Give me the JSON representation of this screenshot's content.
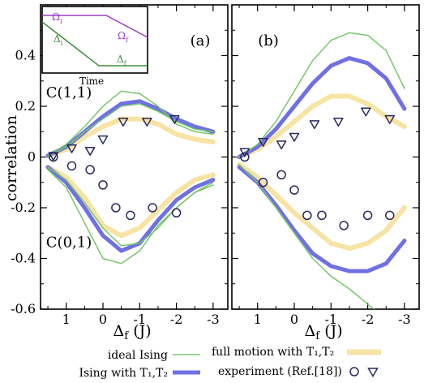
{
  "chart_data": {
    "type": "line",
    "ylabel": "correlation",
    "xlabel": "Δ_f (J)",
    "x_ticks": [
      1,
      0,
      -1,
      -2,
      -3
    ],
    "x_tick_labels": [
      "1",
      "0",
      "-1",
      "-2",
      "-3"
    ],
    "y_ticks": [
      -0.6,
      -0.4,
      -0.2,
      0,
      0.2,
      0.4
    ],
    "y_tick_labels": [
      "-0.6",
      "-0.4",
      "-0.2",
      "0",
      "0.2",
      "0.4"
    ],
    "xlim": [
      1.7,
      -3.4
    ],
    "ylim": [
      -0.6,
      0.6
    ],
    "grid": false,
    "legend_position": "bottom",
    "colors": {
      "ideal": "#77c76b",
      "ising_t": "#7070e4",
      "full_motion": "#f7e3a3",
      "exp_circle": "#2a2a5e",
      "exp_triangle": "#2a2a5e"
    },
    "legend": {
      "ideal": "ideal Ising",
      "ising_t": "Ising with T₁,T₂",
      "full_motion": "full motion with T₁,T₂",
      "experiment": "experiment (Ref.[18])"
    },
    "panels": [
      {
        "label": "(a)",
        "annotations": [
          {
            "text": "C(1,1)",
            "x": 1.55,
            "y": 0.235
          },
          {
            "text": "C(0,1)",
            "x": 1.55,
            "y": -0.355
          }
        ],
        "series": [
          {
            "key": "ideal",
            "band": 0,
            "x": [
              1.5,
              1,
              0.5,
              0,
              -0.5,
              -1,
              -1.5,
              -2,
              -2.5,
              -3
            ],
            "y": [
              0.005,
              0.05,
              0.12,
              0.2,
              0.26,
              0.25,
              0.2,
              0.13,
              0.1,
              0.09
            ]
          },
          {
            "key": "ideal",
            "band": 0,
            "x": [
              1.5,
              1,
              0.5,
              0,
              -0.5,
              -1,
              -1.5,
              -2,
              -2.5,
              -3
            ],
            "y": [
              0.0,
              0.04,
              0.1,
              0.15,
              0.2,
              0.21,
              0.18,
              0.14,
              0.11,
              0.1
            ]
          },
          {
            "key": "ising_t",
            "band": 1,
            "x": [
              1.5,
              1,
              0.5,
              0,
              -0.5,
              -1,
              -1.5,
              -2,
              -2.5,
              -3
            ],
            "y": [
              0.005,
              0.04,
              0.1,
              0.16,
              0.21,
              0.22,
              0.19,
              0.15,
              0.12,
              0.1
            ]
          },
          {
            "key": "full_motion",
            "band": 1,
            "x": [
              1.5,
              1,
              0.5,
              0,
              -0.5,
              -1,
              -1.5,
              -2,
              -2.5,
              -3
            ],
            "y": [
              0.005,
              0.03,
              0.08,
              0.12,
              0.15,
              0.15,
              0.13,
              0.09,
              0.07,
              0.06
            ]
          },
          {
            "key": "ideal",
            "band": 0,
            "x": [
              1.5,
              1,
              0.5,
              0,
              -0.5,
              -1,
              -1.5,
              -2,
              -2.5,
              -3
            ],
            "y": [
              -0.05,
              -0.12,
              -0.26,
              -0.4,
              -0.42,
              -0.37,
              -0.27,
              -0.2,
              -0.14,
              -0.1
            ]
          },
          {
            "key": "ideal",
            "band": 0,
            "x": [
              1.5,
              1,
              0.5,
              0,
              -0.5,
              -1,
              -1.5,
              -2,
              -2.5,
              -3
            ],
            "y": [
              -0.04,
              -0.09,
              -0.18,
              -0.28,
              -0.35,
              -0.34,
              -0.28,
              -0.2,
              -0.14,
              -0.11
            ]
          },
          {
            "key": "ising_t",
            "band": 1,
            "x": [
              1.5,
              1,
              0.5,
              0,
              -0.5,
              -1,
              -1.5,
              -2,
              -2.5,
              -3
            ],
            "y": [
              -0.04,
              -0.1,
              -0.2,
              -0.31,
              -0.37,
              -0.34,
              -0.25,
              -0.17,
              -0.12,
              -0.09
            ]
          },
          {
            "key": "full_motion",
            "band": 1,
            "x": [
              1.5,
              1,
              0.5,
              0,
              -0.5,
              -1,
              -1.5,
              -2,
              -2.5,
              -3
            ],
            "y": [
              -0.04,
              -0.08,
              -0.16,
              -0.27,
              -0.31,
              -0.28,
              -0.21,
              -0.14,
              -0.09,
              -0.07
            ]
          }
        ],
        "exp_circles": {
          "x": [
            1.35,
            0.85,
            0.35,
            0,
            -0.35,
            -0.75,
            -1.35,
            -2.0
          ],
          "y": [
            0.0,
            -0.035,
            -0.05,
            -0.11,
            -0.2,
            -0.23,
            -0.2,
            -0.22
          ]
        },
        "exp_triangles": {
          "x": [
            1.35,
            0.85,
            0.35,
            0,
            -0.55,
            -1.2,
            -1.95
          ],
          "y": [
            0.005,
            0.035,
            0.025,
            0.07,
            0.14,
            0.14,
            0.15
          ]
        }
      },
      {
        "label": "(b)",
        "annotations": [],
        "series": [
          {
            "key": "ideal",
            "band": 0,
            "x": [
              1.5,
              1,
              0.5,
              0,
              -0.5,
              -1,
              -1.5,
              -2,
              -2.5,
              -3
            ],
            "y": [
              0.0,
              0.05,
              0.14,
              0.26,
              0.38,
              0.46,
              0.49,
              0.48,
              0.42,
              0.27
            ]
          },
          {
            "key": "ising_t",
            "band": 1,
            "x": [
              1.5,
              1,
              0.5,
              0,
              -0.5,
              -1,
              -1.5,
              -2,
              -2.5,
              -3
            ],
            "y": [
              0.0,
              0.04,
              0.11,
              0.2,
              0.29,
              0.36,
              0.39,
              0.37,
              0.31,
              0.19
            ]
          },
          {
            "key": "full_motion",
            "band": 1,
            "x": [
              1.5,
              1,
              0.5,
              0,
              -0.5,
              -1,
              -1.5,
              -2,
              -2.5,
              -3
            ],
            "y": [
              0.0,
              0.03,
              0.08,
              0.14,
              0.2,
              0.24,
              0.24,
              0.21,
              0.16,
              0.12
            ]
          },
          {
            "key": "ideal",
            "band": 0,
            "x": [
              1.5,
              1,
              0.5,
              0,
              -0.5,
              -1,
              -1.5,
              -2,
              -2.5,
              -3
            ],
            "y": [
              -0.03,
              -0.1,
              -0.2,
              -0.3,
              -0.4,
              -0.47,
              -0.52,
              -0.58,
              -0.64,
              -0.72
            ]
          },
          {
            "key": "ising_t",
            "band": 1,
            "x": [
              1.5,
              1,
              0.5,
              0,
              -0.5,
              -1,
              -1.5,
              -2,
              -2.5,
              -3
            ],
            "y": [
              -0.04,
              -0.1,
              -0.19,
              -0.29,
              -0.38,
              -0.43,
              -0.45,
              -0.45,
              -0.42,
              -0.33
            ]
          },
          {
            "key": "full_motion",
            "band": 1,
            "x": [
              1.5,
              1,
              0.5,
              0,
              -0.5,
              -1,
              -1.5,
              -2,
              -2.5,
              -3
            ],
            "y": [
              -0.03,
              -0.08,
              -0.15,
              -0.22,
              -0.28,
              -0.34,
              -0.36,
              -0.34,
              -0.29,
              -0.2
            ]
          }
        ],
        "exp_circles": {
          "x": [
            1.35,
            0.85,
            0.35,
            0,
            -0.35,
            -0.75,
            -1.35,
            -2.0,
            -2.6
          ],
          "y": [
            0.0,
            -0.1,
            -0.07,
            -0.13,
            -0.23,
            -0.23,
            -0.27,
            -0.23,
            -0.23
          ]
        },
        "exp_triangles": {
          "x": [
            1.35,
            0.85,
            0.35,
            0,
            -0.55,
            -1.2,
            -1.95,
            -2.6
          ],
          "y": [
            0.02,
            0.06,
            0.05,
            0.08,
            0.13,
            0.14,
            0.18,
            0.15
          ]
        }
      }
    ],
    "inset": {
      "xlabel": "Time",
      "omega_i": "Ω_i",
      "omega_f": "Ω_f",
      "delta_i": "Δ_i",
      "delta_f": "Δ_f",
      "colors": {
        "omega": "#9a3ec7",
        "delta": "#3f8f3a"
      }
    }
  }
}
